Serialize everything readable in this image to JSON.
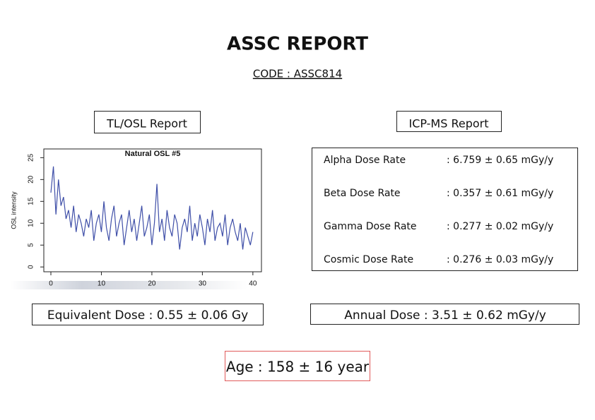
{
  "header": {
    "title": "ASSC REPORT",
    "code": "CODE : ASSC814"
  },
  "tl_osl": {
    "heading": "TL/OSL Report",
    "equivalent_dose": "Equivalent Dose : 0.55 ± 0.06 Gy"
  },
  "icp_ms": {
    "heading": "ICP-MS Report",
    "rows": [
      [
        "Alpha Dose Rate",
        ": 6.759 ± 0.65 mGy/y"
      ],
      [
        "Beta Dose Rate",
        ": 0.357 ± 0.61 mGy/y"
      ],
      [
        "Gamma Dose Rate",
        ": 0.277 ± 0.02 mGy/y"
      ],
      [
        "Cosmic Dose Rate",
        ": 0.276 ± 0.03 mGy/y"
      ]
    ],
    "annual_dose": "Annual Dose : 3.51 ± 0.62 mGy/y"
  },
  "age": "Age : 158 ± 16 year",
  "chart_data": {
    "type": "line",
    "title": "Natural OSL #5",
    "y_label": "OSL intensity",
    "color": "#3f4fa8",
    "x": [
      0,
      0.5,
      1,
      1.5,
      2,
      2.5,
      3,
      3.5,
      4,
      4.5,
      5,
      5.5,
      6,
      6.5,
      7,
      7.5,
      8,
      8.5,
      9,
      9.5,
      10,
      10.5,
      11,
      11.5,
      12,
      12.5,
      13,
      13.5,
      14,
      14.5,
      15,
      15.5,
      16,
      16.5,
      17,
      17.5,
      18,
      18.5,
      19,
      19.5,
      20,
      20.5,
      21,
      21.5,
      22,
      22.5,
      23,
      23.5,
      24,
      24.5,
      25,
      25.5,
      26,
      26.5,
      27,
      27.5,
      28,
      28.5,
      29,
      29.5,
      30,
      30.5,
      31,
      31.5,
      32,
      32.5,
      33,
      33.5,
      34,
      34.5,
      35,
      35.5,
      36,
      36.5,
      37,
      37.5,
      38,
      38.5,
      39,
      39.5,
      40
    ],
    "values": [
      17,
      23,
      12,
      20,
      14,
      16,
      11,
      13,
      9,
      14,
      8,
      12,
      10,
      7,
      11,
      9,
      13,
      6,
      10,
      12,
      8,
      15,
      9,
      6,
      11,
      14,
      7,
      10,
      12,
      5,
      9,
      13,
      8,
      11,
      6,
      10,
      14,
      7,
      9,
      12,
      5,
      10,
      19,
      8,
      11,
      6,
      13,
      9,
      7,
      12,
      10,
      4,
      9,
      11,
      8,
      14,
      6,
      10,
      7,
      12,
      9,
      5,
      11,
      8,
      13,
      6,
      9,
      10,
      7,
      12,
      5,
      9,
      11,
      8,
      6,
      10,
      4,
      9,
      7,
      5,
      8
    ],
    "xlim": [
      -1.4,
      41.7
    ],
    "ylim": [
      -1.1,
      27
    ],
    "xticks": [
      0,
      10,
      20,
      30,
      40
    ],
    "yticks": [
      0,
      5,
      10,
      15,
      20,
      25
    ]
  }
}
